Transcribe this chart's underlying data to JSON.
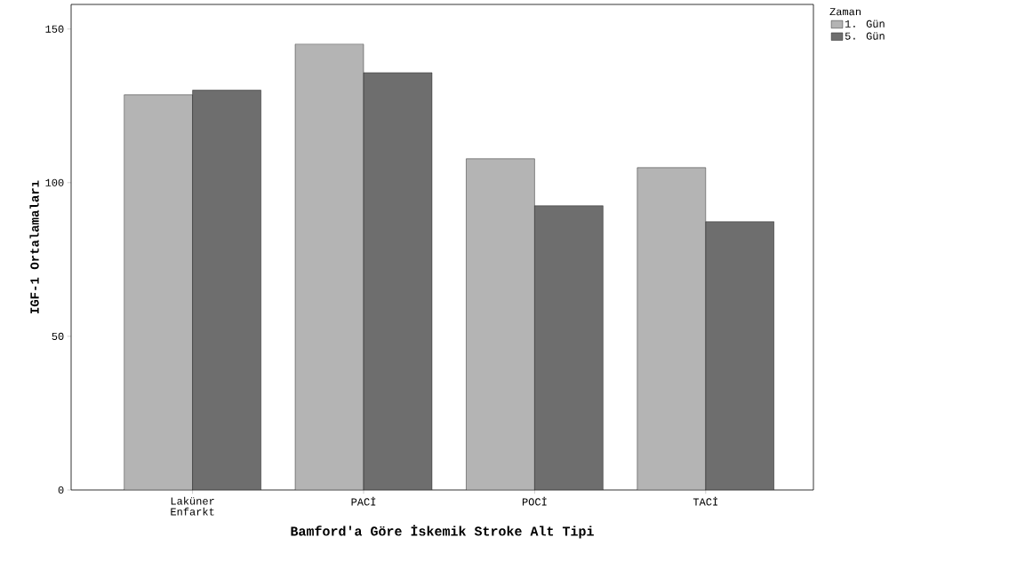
{
  "chart_data": {
    "type": "bar",
    "xlabel": "Bamford'a Göre İskemik Stroke Alt Tipi",
    "ylabel": "IGF-1 Ortalamaları",
    "legend_title": "Zaman",
    "categories": [
      "Laküner Enfarkt",
      "PACİ",
      "POCİ",
      "TACİ"
    ],
    "series": [
      {
        "name": "1. Gün",
        "color": "#b4b4b4",
        "values": [
          128.6,
          145.1,
          107.8,
          104.9
        ]
      },
      {
        "name": "5. Gün",
        "color": "#6e6e6e",
        "values": [
          130.1,
          135.8,
          92.5,
          87.3
        ]
      }
    ],
    "ylim": [
      0,
      158
    ],
    "yticks": [
      0,
      50,
      100,
      150
    ],
    "grid": false,
    "legend": "top right"
  }
}
